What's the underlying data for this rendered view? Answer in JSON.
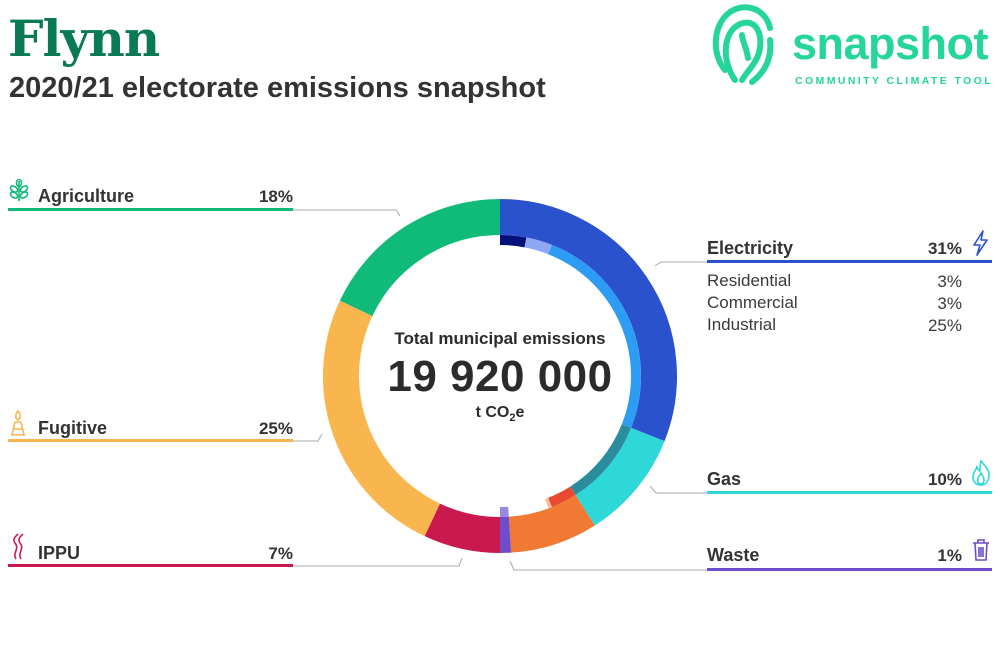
{
  "header": {
    "title": "Flynn",
    "subtitle": "2020/21 electorate emissions snapshot",
    "title_color": "#0a7a55"
  },
  "logo": {
    "word": "snapshot",
    "tagline": "COMMUNITY CLIMATE TOOL",
    "color": "#26d59a"
  },
  "center": {
    "label": "Total municipal emissions",
    "value": "19 920 000",
    "unit_prefix": "t CO",
    "unit_sub": "2",
    "unit_suffix": "e"
  },
  "labels": {
    "agriculture": {
      "name": "Agriculture",
      "pct": "18%",
      "icon": "wheat-icon",
      "color": "#10ba79"
    },
    "fugitive": {
      "name": "Fugitive",
      "pct": "25%",
      "icon": "flame-rig-icon",
      "color": "#fab64e"
    },
    "ippu": {
      "name": "IPPU",
      "pct": "7%",
      "icon": "smoke-icon",
      "color": "#c9194e"
    },
    "electricity": {
      "name": "Electricity",
      "pct": "31%",
      "icon": "lightning-icon",
      "color": "#2a52cc",
      "subs": [
        {
          "name": "Residential",
          "pct": "3%"
        },
        {
          "name": "Commercial",
          "pct": "3%"
        },
        {
          "name": "Industrial",
          "pct": "25%"
        }
      ]
    },
    "gas": {
      "name": "Gas",
      "pct": "10%",
      "icon": "gas-flame-icon",
      "color": "#2fd8d8"
    },
    "waste": {
      "name": "Waste",
      "pct": "1%",
      "icon": "trash-icon",
      "color": "#6e4ccc"
    }
  },
  "chart_data": {
    "type": "pie",
    "total": "19 920 000",
    "unit": "t CO2e",
    "series": [
      {
        "name": "Electricity",
        "value": 31,
        "color": "#2a52cc",
        "subs": [
          {
            "name": "Residential",
            "value": 3,
            "color": "#04117a"
          },
          {
            "name": "Commercial",
            "value": 3,
            "color": "#8fa8f5"
          },
          {
            "name": "Industrial",
            "value": 25,
            "color": "#2d9cf5"
          }
        ]
      },
      {
        "name": "Gas",
        "value": 10,
        "color": "#2fd8d8",
        "subs": [
          {
            "name": "",
            "value": 10,
            "color": "#2a8c9c"
          }
        ]
      },
      {
        "name": "",
        "value": 8,
        "color": "#f07a33",
        "subs": [
          {
            "name": "",
            "value": 3,
            "color": "#e84a30"
          },
          {
            "name": "",
            "value": 0.4,
            "color": "#f7b9a0"
          }
        ]
      },
      {
        "name": "Waste",
        "value": 1,
        "color": "#6e4ccc",
        "subs": [
          {
            "name": "",
            "value": 1,
            "color": "#9a88e0"
          }
        ]
      },
      {
        "name": "IPPU",
        "value": 7,
        "color": "#c9194e"
      },
      {
        "name": "Fugitive",
        "value": 25,
        "color": "#fab64e"
      },
      {
        "name": "Agriculture",
        "value": 18,
        "color": "#10ba79"
      }
    ]
  }
}
